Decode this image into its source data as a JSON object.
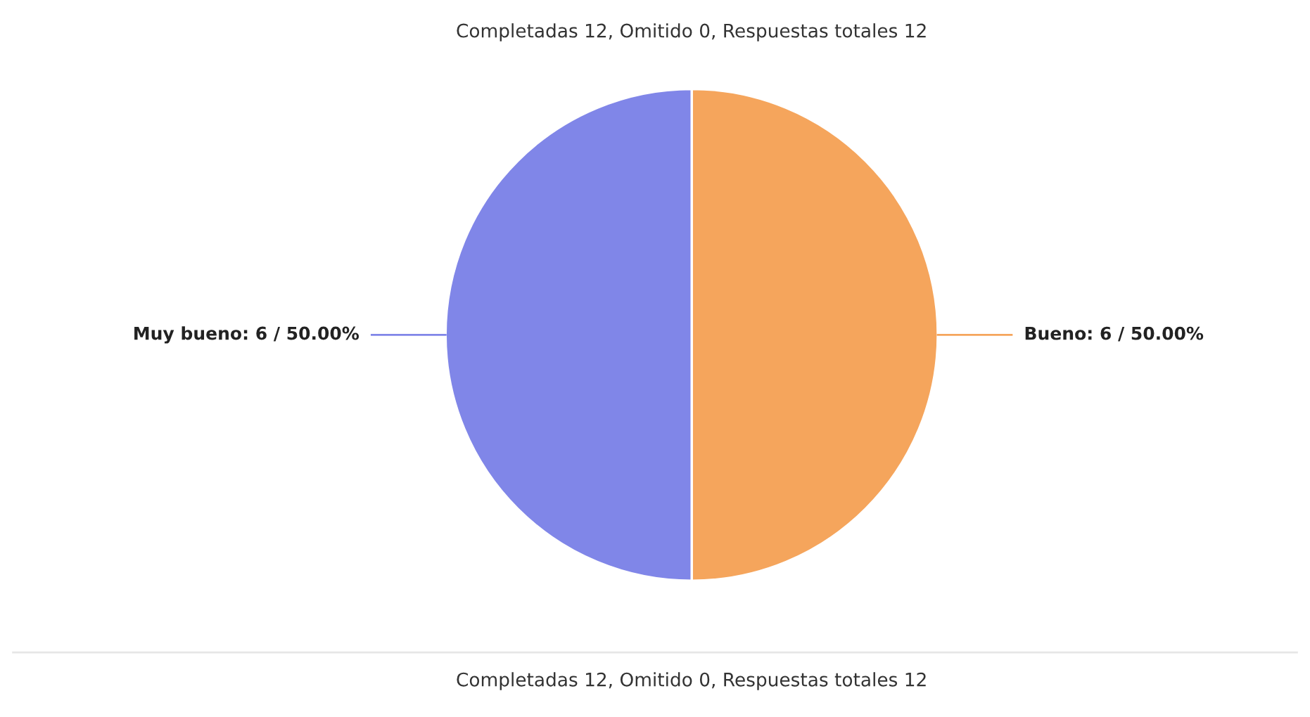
{
  "chart_data": {
    "type": "pie",
    "title": "Completadas 12, Omitido 0, Respuestas totales 12",
    "categories": [
      "Bueno",
      "Muy bueno"
    ],
    "values": [
      6,
      6
    ],
    "colors": [
      "#f5a55c",
      "#8086e8"
    ],
    "value_labels": [
      "6 / 50.00%",
      "6 / 50.00%"
    ],
    "annotations": [
      "Completadas 12, Omitido 0, Respuestas totales 12"
    ],
    "legend": false
  }
}
